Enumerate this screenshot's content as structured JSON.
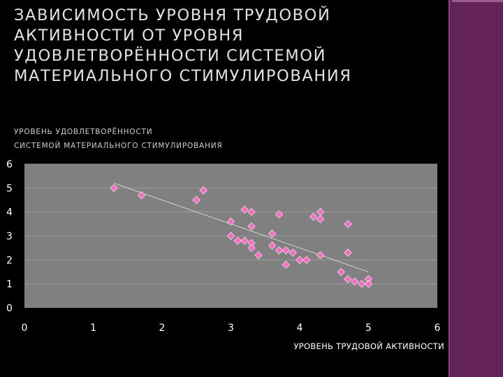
{
  "slide": {
    "title": "ЗАВИСИМОСТЬ УРОВНЯ ТРУДОВОЙ\nАКТИВНОСТИ ОТ УРОВНЯ\nУДОВЛЕТВОРЁННОСТИ СИСТЕМОЙ\nМАТЕРИАЛЬНОГО СТИМУЛИРОВАНИЯ"
  },
  "colors": {
    "background": "#000000",
    "plot_area": "#808080",
    "gridline": "#a0a0a0",
    "marker": "#f070c0",
    "trendline": "#dddddd",
    "sidebar": "#5d1e55"
  },
  "chart_data": {
    "type": "scatter",
    "ylabel_lines": [
      "УРОВЕНЬ УДОВЛЕТВОРЁННОСТИ",
      "СИСТЕМОЙ МАТЕРИАЛЬНОГО СТИМУЛИРОВАНИЯ"
    ],
    "xlabel": "УРОВЕНЬ ТРУДОВОЙ АКТИВНОСТИ",
    "xlim": [
      0,
      6
    ],
    "ylim": [
      0,
      6
    ],
    "x_ticks": [
      "0",
      "1",
      "2",
      "3",
      "4",
      "5",
      "6"
    ],
    "y_ticks": [
      "0",
      "1",
      "2",
      "3",
      "4",
      "5",
      "6"
    ],
    "grid": true,
    "marker_shape": "diamond",
    "trendline": {
      "type": "linear",
      "from": [
        1.3,
        5.2
      ],
      "to": [
        5.0,
        1.5
      ]
    },
    "points": [
      {
        "x": 1.3,
        "y": 5.0
      },
      {
        "x": 1.7,
        "y": 4.7
      },
      {
        "x": 2.5,
        "y": 4.5
      },
      {
        "x": 2.6,
        "y": 4.9
      },
      {
        "x": 3.0,
        "y": 3.6
      },
      {
        "x": 3.2,
        "y": 4.1
      },
      {
        "x": 3.3,
        "y": 4.0
      },
      {
        "x": 3.7,
        "y": 3.9
      },
      {
        "x": 3.3,
        "y": 3.4
      },
      {
        "x": 3.0,
        "y": 3.0
      },
      {
        "x": 3.1,
        "y": 2.8
      },
      {
        "x": 3.2,
        "y": 2.8
      },
      {
        "x": 3.3,
        "y": 2.7
      },
      {
        "x": 3.3,
        "y": 2.5
      },
      {
        "x": 3.4,
        "y": 2.2
      },
      {
        "x": 3.6,
        "y": 3.1
      },
      {
        "x": 3.6,
        "y": 2.6
      },
      {
        "x": 3.7,
        "y": 2.4
      },
      {
        "x": 3.8,
        "y": 2.4
      },
      {
        "x": 3.9,
        "y": 2.3
      },
      {
        "x": 3.8,
        "y": 1.8
      },
      {
        "x": 4.0,
        "y": 2.0
      },
      {
        "x": 4.1,
        "y": 2.0
      },
      {
        "x": 4.2,
        "y": 3.8
      },
      {
        "x": 4.3,
        "y": 4.0
      },
      {
        "x": 4.3,
        "y": 3.7
      },
      {
        "x": 4.3,
        "y": 2.2
      },
      {
        "x": 4.7,
        "y": 3.5
      },
      {
        "x": 4.7,
        "y": 2.3
      },
      {
        "x": 4.6,
        "y": 1.5
      },
      {
        "x": 4.7,
        "y": 1.2
      },
      {
        "x": 4.8,
        "y": 1.1
      },
      {
        "x": 4.9,
        "y": 1.0
      },
      {
        "x": 5.0,
        "y": 1.2
      },
      {
        "x": 5.0,
        "y": 1.0
      }
    ]
  }
}
